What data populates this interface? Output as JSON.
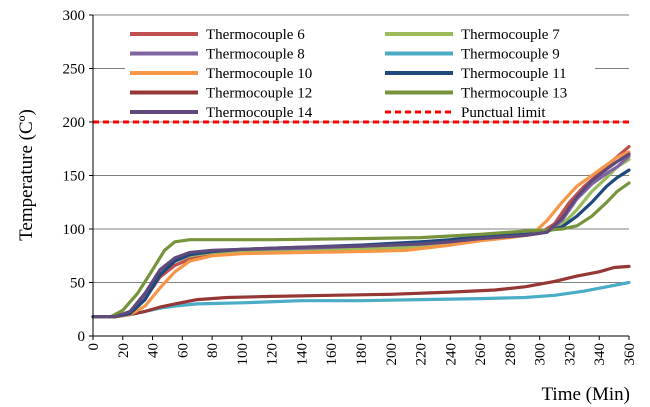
{
  "chart_data": {
    "type": "line",
    "title": "",
    "xlabel": "Time (Min)",
    "ylabel": "Temperature (Cº)",
    "xlim": [
      0,
      360
    ],
    "ylim": [
      0,
      300
    ],
    "x_ticks": [
      0,
      20,
      40,
      60,
      80,
      100,
      120,
      140,
      160,
      180,
      200,
      220,
      240,
      260,
      280,
      300,
      320,
      340,
      360
    ],
    "y_ticks": [
      0,
      50,
      100,
      150,
      200,
      250,
      300
    ],
    "grid": "horizontal",
    "legend": "top, inside, two columns",
    "series": [
      {
        "name": "Thermocouple 6",
        "color": "#c0504d",
        "style": "solid",
        "points": [
          [
            0,
            18
          ],
          [
            15,
            18
          ],
          [
            25,
            22
          ],
          [
            35,
            35
          ],
          [
            45,
            55
          ],
          [
            55,
            66
          ],
          [
            65,
            72
          ],
          [
            80,
            77
          ],
          [
            100,
            79
          ],
          [
            140,
            80
          ],
          [
            180,
            81
          ],
          [
            220,
            83
          ],
          [
            240,
            86
          ],
          [
            260,
            90
          ],
          [
            290,
            94
          ],
          [
            300,
            96
          ],
          [
            310,
            105
          ],
          [
            320,
            125
          ],
          [
            330,
            140
          ],
          [
            340,
            152
          ],
          [
            350,
            165
          ],
          [
            360,
            177
          ]
        ]
      },
      {
        "name": "Thermocouple 7",
        "color": "#9bbb59",
        "style": "solid",
        "points": [
          [
            0,
            18
          ],
          [
            15,
            18
          ],
          [
            25,
            23
          ],
          [
            35,
            38
          ],
          [
            45,
            58
          ],
          [
            55,
            70
          ],
          [
            65,
            75
          ],
          [
            80,
            78
          ],
          [
            100,
            79
          ],
          [
            140,
            80
          ],
          [
            180,
            81
          ],
          [
            220,
            83
          ],
          [
            240,
            86
          ],
          [
            260,
            90
          ],
          [
            290,
            95
          ],
          [
            305,
            98
          ],
          [
            315,
            104
          ],
          [
            325,
            118
          ],
          [
            335,
            135
          ],
          [
            345,
            148
          ],
          [
            352,
            158
          ],
          [
            360,
            165
          ]
        ]
      },
      {
        "name": "Thermocouple 8",
        "color": "#8064a2",
        "style": "solid",
        "points": [
          [
            0,
            18
          ],
          [
            15,
            18
          ],
          [
            25,
            22
          ],
          [
            35,
            36
          ],
          [
            45,
            58
          ],
          [
            55,
            70
          ],
          [
            65,
            76
          ],
          [
            80,
            79
          ],
          [
            100,
            81
          ],
          [
            140,
            82
          ],
          [
            180,
            84
          ],
          [
            220,
            86
          ],
          [
            240,
            88
          ],
          [
            260,
            91
          ],
          [
            290,
            94
          ],
          [
            305,
            97
          ],
          [
            315,
            108
          ],
          [
            325,
            128
          ],
          [
            335,
            142
          ],
          [
            345,
            152
          ],
          [
            352,
            158
          ],
          [
            360,
            168
          ]
        ]
      },
      {
        "name": "Thermocouple 9",
        "color": "#4bacc6",
        "style": "solid",
        "points": [
          [
            0,
            18
          ],
          [
            15,
            18
          ],
          [
            25,
            20
          ],
          [
            35,
            23
          ],
          [
            45,
            26
          ],
          [
            55,
            28
          ],
          [
            70,
            30
          ],
          [
            100,
            31
          ],
          [
            140,
            33
          ],
          [
            180,
            33
          ],
          [
            220,
            34
          ],
          [
            260,
            35
          ],
          [
            290,
            36
          ],
          [
            310,
            38
          ],
          [
            330,
            42
          ],
          [
            345,
            46
          ],
          [
            360,
            50
          ]
        ]
      },
      {
        "name": "Thermocouple 10",
        "color": "#f79646",
        "style": "solid",
        "points": [
          [
            0,
            18
          ],
          [
            15,
            18
          ],
          [
            25,
            20
          ],
          [
            35,
            28
          ],
          [
            45,
            45
          ],
          [
            55,
            60
          ],
          [
            65,
            70
          ],
          [
            80,
            75
          ],
          [
            100,
            77
          ],
          [
            140,
            78
          ],
          [
            180,
            79
          ],
          [
            210,
            80
          ],
          [
            240,
            85
          ],
          [
            260,
            89
          ],
          [
            280,
            92
          ],
          [
            295,
            95
          ],
          [
            305,
            108
          ],
          [
            315,
            125
          ],
          [
            325,
            140
          ],
          [
            335,
            150
          ],
          [
            345,
            160
          ],
          [
            352,
            167
          ],
          [
            360,
            172
          ]
        ]
      },
      {
        "name": "Thermocouple 11",
        "color": "#1f497d",
        "style": "solid",
        "points": [
          [
            0,
            18
          ],
          [
            15,
            18
          ],
          [
            25,
            21
          ],
          [
            35,
            34
          ],
          [
            45,
            57
          ],
          [
            55,
            70
          ],
          [
            65,
            76
          ],
          [
            80,
            79
          ],
          [
            100,
            81
          ],
          [
            140,
            83
          ],
          [
            180,
            85
          ],
          [
            220,
            88
          ],
          [
            240,
            90
          ],
          [
            260,
            93
          ],
          [
            290,
            95
          ],
          [
            305,
            98
          ],
          [
            315,
            102
          ],
          [
            325,
            112
          ],
          [
            335,
            125
          ],
          [
            345,
            140
          ],
          [
            352,
            148
          ],
          [
            360,
            155
          ]
        ]
      },
      {
        "name": "Thermocouple 12",
        "color": "#953735",
        "style": "solid",
        "points": [
          [
            0,
            18
          ],
          [
            15,
            18
          ],
          [
            25,
            20
          ],
          [
            35,
            23
          ],
          [
            45,
            27
          ],
          [
            55,
            30
          ],
          [
            70,
            34
          ],
          [
            90,
            36
          ],
          [
            120,
            37
          ],
          [
            160,
            38
          ],
          [
            200,
            39
          ],
          [
            240,
            41
          ],
          [
            270,
            43
          ],
          [
            290,
            46
          ],
          [
            310,
            51
          ],
          [
            325,
            56
          ],
          [
            340,
            60
          ],
          [
            350,
            64
          ],
          [
            360,
            65
          ]
        ]
      },
      {
        "name": "Thermocouple 13",
        "color": "#77933c",
        "style": "solid",
        "points": [
          [
            0,
            18
          ],
          [
            12,
            18
          ],
          [
            20,
            24
          ],
          [
            30,
            40
          ],
          [
            40,
            62
          ],
          [
            48,
            80
          ],
          [
            55,
            88
          ],
          [
            65,
            90
          ],
          [
            80,
            90
          ],
          [
            120,
            90
          ],
          [
            180,
            91
          ],
          [
            220,
            92
          ],
          [
            260,
            95
          ],
          [
            290,
            98
          ],
          [
            305,
            99
          ],
          [
            315,
            100
          ],
          [
            325,
            103
          ],
          [
            335,
            112
          ],
          [
            345,
            125
          ],
          [
            352,
            135
          ],
          [
            360,
            143
          ]
        ]
      },
      {
        "name": "Thermocouple 14",
        "color": "#604a7b",
        "style": "solid",
        "points": [
          [
            0,
            18
          ],
          [
            15,
            18
          ],
          [
            25,
            23
          ],
          [
            35,
            40
          ],
          [
            45,
            62
          ],
          [
            55,
            73
          ],
          [
            65,
            78
          ],
          [
            80,
            80
          ],
          [
            100,
            81
          ],
          [
            140,
            83
          ],
          [
            180,
            84
          ],
          [
            220,
            86
          ],
          [
            240,
            88
          ],
          [
            260,
            91
          ],
          [
            290,
            94
          ],
          [
            305,
            97
          ],
          [
            315,
            110
          ],
          [
            325,
            130
          ],
          [
            335,
            145
          ],
          [
            345,
            156
          ],
          [
            352,
            163
          ],
          [
            360,
            170
          ]
        ]
      },
      {
        "name": "Punctual limit",
        "color": "#ff0000",
        "style": "dashed",
        "points": [
          [
            0,
            200
          ],
          [
            360,
            200
          ]
        ]
      }
    ]
  }
}
